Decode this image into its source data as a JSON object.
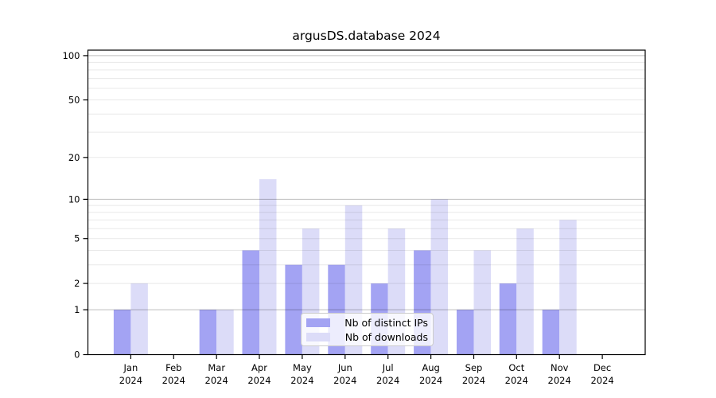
{
  "chart_data": {
    "type": "bar",
    "title": "argusDS.database 2024",
    "categories": [
      "Jan 2024",
      "Feb 2024",
      "Mar 2024",
      "Apr 2024",
      "May 2024",
      "Jun 2024",
      "Jul 2024",
      "Aug 2024",
      "Sep 2024",
      "Oct 2024",
      "Nov 2024",
      "Dec 2024"
    ],
    "x_tick_line1": [
      "Jan",
      "Feb",
      "Mar",
      "Apr",
      "May",
      "Jun",
      "Jul",
      "Aug",
      "Sep",
      "Oct",
      "Nov",
      "Dec"
    ],
    "x_tick_line2": "2024",
    "series": [
      {
        "name": "Nb of distinct IPs",
        "color": "#a3a3f3",
        "values": [
          1,
          0,
          1,
          4,
          3,
          3,
          2,
          4,
          1,
          2,
          1,
          0
        ]
      },
      {
        "name": "Nb of downloads",
        "color": "#dcdcf8",
        "values": [
          2,
          0,
          1,
          14,
          6,
          9,
          6,
          10,
          4,
          6,
          7,
          0
        ]
      }
    ],
    "xlabel": "",
    "ylabel": "",
    "yscale": "log1p",
    "ylim": [
      0,
      109
    ],
    "y_ticks": [
      0,
      1,
      2,
      5,
      10,
      20,
      50,
      100
    ],
    "y_minor_gridlines": [
      3,
      4,
      6,
      7,
      8,
      9,
      30,
      40,
      60,
      70,
      80,
      90
    ],
    "grid": true,
    "legend_position": "lower center",
    "colors": {
      "major_gridline": "rgba(0,0,0,0.26)",
      "minor_gridline": "rgba(0,0,0,0.09)",
      "spine": "#000000",
      "background": "#ffffff"
    }
  }
}
